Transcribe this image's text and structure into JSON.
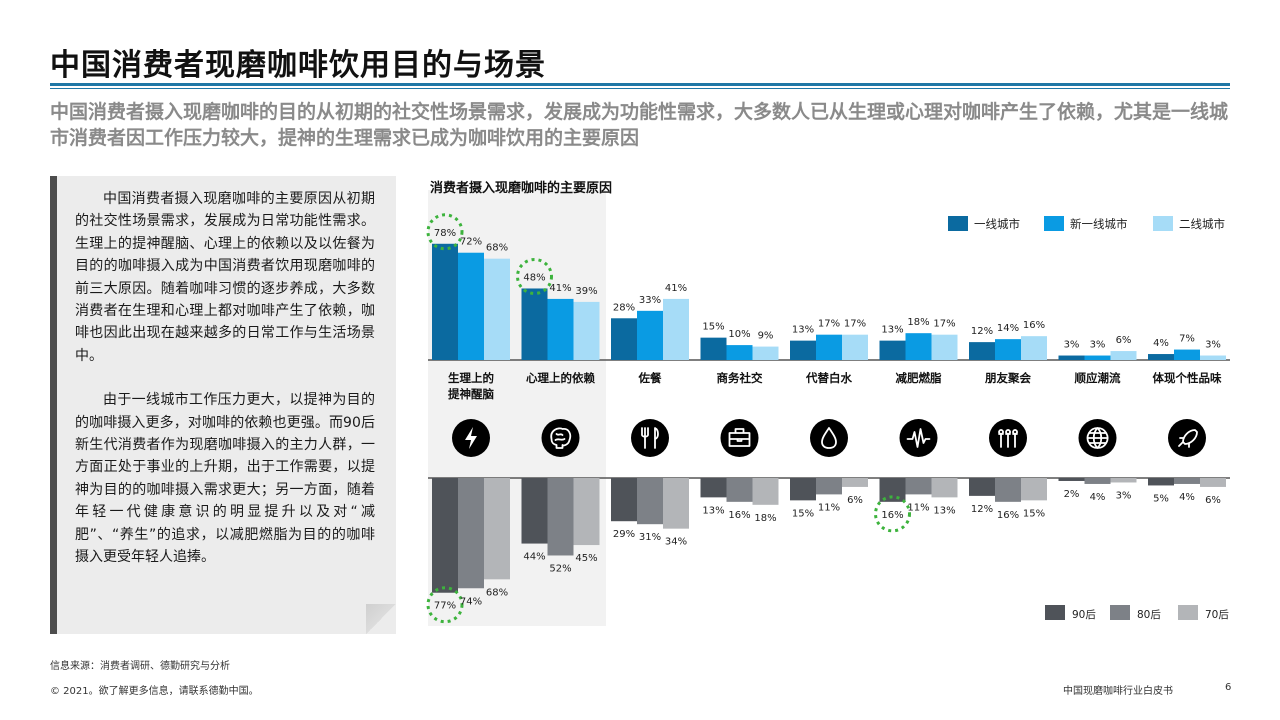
{
  "title": "中国消费者现磨咖啡饮用目的与场景",
  "subtitle": "中国消费者摄入现磨咖啡的目的从初期的社交性场景需求，发展成为功能性需求，大多数人已从生理或心理对咖啡产生了依赖，尤其是一线城市消费者因工作压力较大，提神的生理需求已成为咖啡饮用的主要原因",
  "note": {
    "p1": "中国消费者摄入现磨咖啡的主要原因从初期的社交性场景需求，发展成为日常功能性需求。生理上的提神醒脑、心理上的依赖以及以佐餐为目的的咖啡摄入成为中国消费者饮用现磨咖啡的前三大原因。随着咖啡习惯的逐步养成，大多数消费者在生理和心理上都对咖啡产生了依赖，咖啡也因此出现在越来越多的日常工作与生活场景中。",
    "p2": "由于一线城市工作压力更大，以提神为目的的咖啡摄入更多，对咖啡的依赖也更强。而90后新生代消费者作为现磨咖啡摄入的主力人群，一方面正处于事业的上升期，出于工作需要，以提神为目的的咖啡摄入需求更大；另一方面，随着年轻一代健康意识的明显提升以及对“减肥”、“养生”的追求，以减肥燃脂为目的的咖啡摄入更受年轻人追捧。"
  },
  "source": "信息来源：消费者调研、德勤研究与分析",
  "footer": {
    "copyright": "© 2021。欲了解更多信息，请联系德勤中国。",
    "report": "中国现磨咖啡行业白皮书",
    "page": "6"
  },
  "colors": {
    "tier1": "#0b6aa0",
    "new_tier1": "#0a9be3",
    "tier2": "#a6dcf7",
    "age90": "#4f5359",
    "age80": "#7d8187",
    "age70": "#b3b5b8",
    "highlight": "#3db33d",
    "title_rule": "#1f77a6"
  },
  "chart_data": {
    "type": "bar",
    "title": "消费者摄入现磨咖啡的主要原因",
    "categories": [
      "生理上的\n提神醒脑",
      "心理上的依赖",
      "佐餐",
      "商务社交",
      "代替白水",
      "减肥燃脂",
      "朋友聚会",
      "顺应潮流",
      "体现个性品味"
    ],
    "category_icons": [
      "lightning-icon",
      "brain-icon",
      "cutlery-icon",
      "briefcase-icon",
      "water-drop-icon",
      "pulse-icon",
      "people-icon",
      "globe-icon",
      "rocket-icon"
    ],
    "top": {
      "series": [
        {
          "name": "一线城市",
          "values": [
            78,
            48,
            28,
            15,
            13,
            13,
            12,
            3,
            4
          ]
        },
        {
          "name": "新一线城市",
          "values": [
            72,
            41,
            33,
            10,
            17,
            18,
            14,
            3,
            7
          ]
        },
        {
          "name": "二线城市",
          "values": [
            68,
            39,
            41,
            9,
            17,
            17,
            16,
            6,
            3
          ]
        }
      ],
      "highlighted": [
        [
          0,
          0
        ],
        [
          1,
          0
        ]
      ]
    },
    "bottom": {
      "series": [
        {
          "name": "90后",
          "values": [
            77,
            44,
            29,
            13,
            15,
            16,
            12,
            2,
            5
          ]
        },
        {
          "name": "80后",
          "values": [
            74,
            52,
            31,
            16,
            11,
            11,
            16,
            4,
            4
          ]
        },
        {
          "name": "70后",
          "values": [
            68,
            45,
            34,
            18,
            6,
            13,
            15,
            3,
            6
          ]
        }
      ],
      "highlighted": [
        [
          0,
          0
        ],
        [
          5,
          0
        ]
      ]
    },
    "value_suffix": "%",
    "shaded_categories": [
      0,
      1
    ],
    "legend_top_position": "top-right",
    "legend_bottom_position": "bottom-right"
  }
}
